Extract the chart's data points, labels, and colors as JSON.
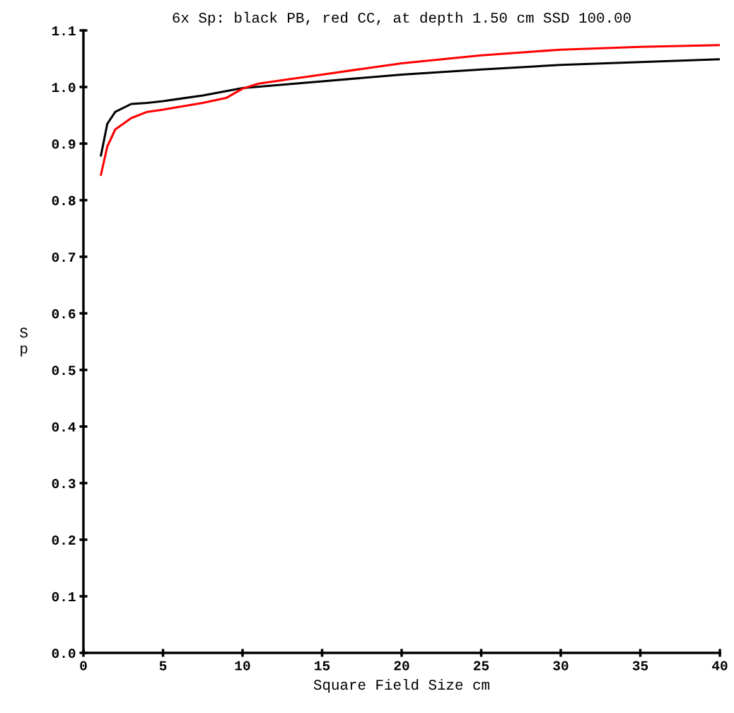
{
  "chart_data": {
    "type": "line",
    "title": "6x Sp: black PB, red CC, at depth 1.50 cm SSD 100.00",
    "xlabel": "Square Field Size cm",
    "ylabel": "Sp",
    "series": [
      {
        "color": "#000000",
        "x": [
          1.1,
          1.5,
          2,
          3,
          4,
          5,
          7.5,
          10,
          15,
          20,
          25,
          30,
          40
        ],
        "values": [
          0.879,
          0.935,
          0.956,
          0.97,
          0.972,
          0.975,
          0.985,
          0.998,
          1.01,
          1.022,
          1.031,
          1.039,
          1.049
        ]
      },
      {
        "color": "#ff0000",
        "x": [
          1.1,
          1.5,
          2,
          3,
          4,
          5,
          7.5,
          9,
          10,
          11,
          13,
          15,
          20,
          25,
          30,
          35,
          40
        ],
        "values": [
          0.845,
          0.895,
          0.925,
          0.945,
          0.956,
          0.96,
          0.972,
          0.981,
          0.997,
          1.006,
          1.014,
          1.022,
          1.042,
          1.056,
          1.066,
          1.071,
          1.074
        ]
      }
    ],
    "xlim": [
      0,
      40
    ],
    "xticks": [
      0,
      5,
      10,
      15,
      20,
      25,
      30,
      35,
      40
    ],
    "ylim": [
      0,
      1.1
    ],
    "yticks": [
      {
        "value": 0,
        "label": "0.0"
      },
      {
        "value": 0.1,
        "label": "0.1"
      },
      {
        "value": 0.2,
        "label": "0.2"
      },
      {
        "value": 0.3,
        "label": "0.3"
      },
      {
        "value": 0.4,
        "label": "0.4"
      },
      {
        "value": 0.5,
        "label": "0.5"
      },
      {
        "value": 0.6,
        "label": "0.6"
      },
      {
        "value": 0.7,
        "label": "0.7"
      },
      {
        "value": 0.8,
        "label": "0.8"
      },
      {
        "value": 0.9,
        "label": "0.9"
      },
      {
        "value": 1.0,
        "label": "1.0"
      },
      {
        "value": 1.1,
        "label": "1.1"
      }
    ],
    "grid": false,
    "marker": "none",
    "line_style": "solid"
  }
}
